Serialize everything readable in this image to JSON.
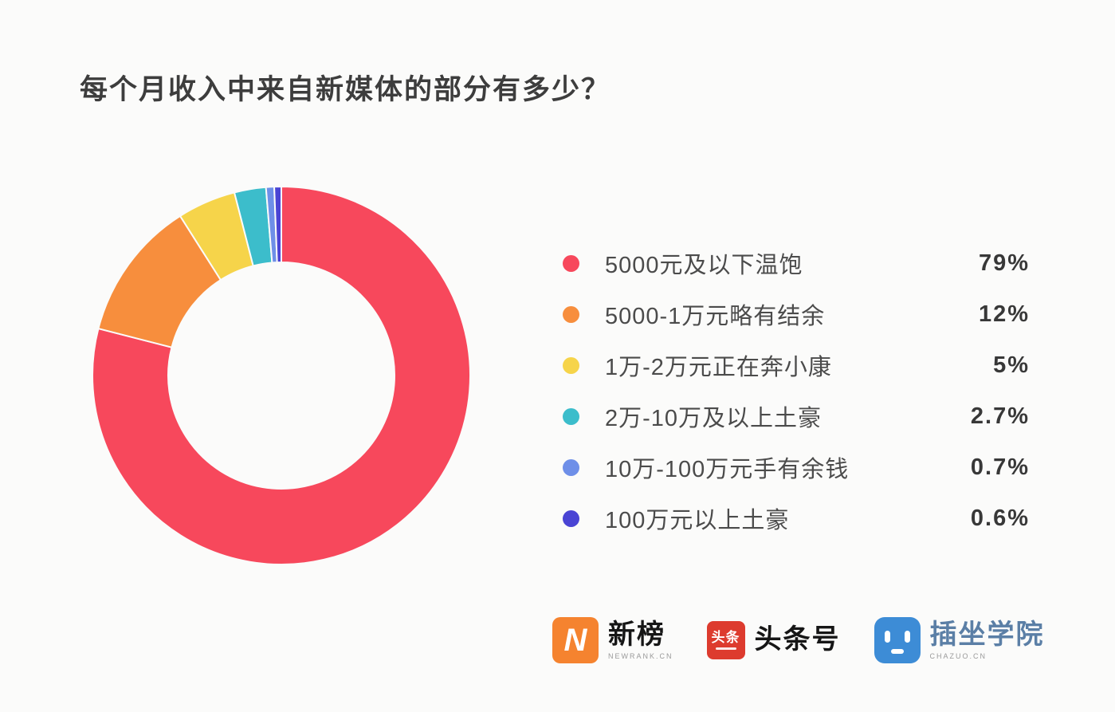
{
  "title": "每个月收入中来自新媒体的部分有多少？",
  "chart_data": {
    "type": "pie",
    "subtype": "donut",
    "title": "每个月收入中来自新媒体的部分有多少？",
    "legend_position": "right",
    "start_angle": "12-o-clock, clockwise",
    "series": [
      {
        "label": "5000元及以下温饱",
        "value": 79,
        "display": "79%",
        "color": "#f7485c"
      },
      {
        "label": "5000-1万元略有结余",
        "value": 12,
        "display": "12%",
        "color": "#f78e3d"
      },
      {
        "label": "1万-2万元正在奔小康",
        "value": 5,
        "display": "5%",
        "color": "#f6d44a"
      },
      {
        "label": "2万-10万及以上土豪",
        "value": 2.7,
        "display": "2.7%",
        "color": "#3cbdcb"
      },
      {
        "label": "10万-100万元手有余钱",
        "value": 0.7,
        "display": "0.7%",
        "color": "#6e8fe8"
      },
      {
        "label": "100万元以上土豪",
        "value": 0.6,
        "display": "0.6%",
        "color": "#4a44d4"
      }
    ]
  },
  "footer": {
    "logos": [
      {
        "name": "newrank",
        "badge_text": "N",
        "title": "新榜",
        "subtitle": "NEWRANK.CN",
        "badge_color": "#f5832f"
      },
      {
        "name": "toutiao",
        "badge_text": "头条",
        "title": "头条号",
        "badge_color": "#dd3b2e"
      },
      {
        "name": "chazuo",
        "badge_text": "",
        "title": "插坐学院",
        "subtitle": "CHAZUO.CN",
        "badge_color": "#3d8cd6",
        "title_color": "#5b7fa6"
      }
    ]
  },
  "colors": {
    "background": "#fbfbfa",
    "title_text": "#3d3d3d",
    "legend_text": "#4b4b4b",
    "legend_value_text": "#383838"
  }
}
